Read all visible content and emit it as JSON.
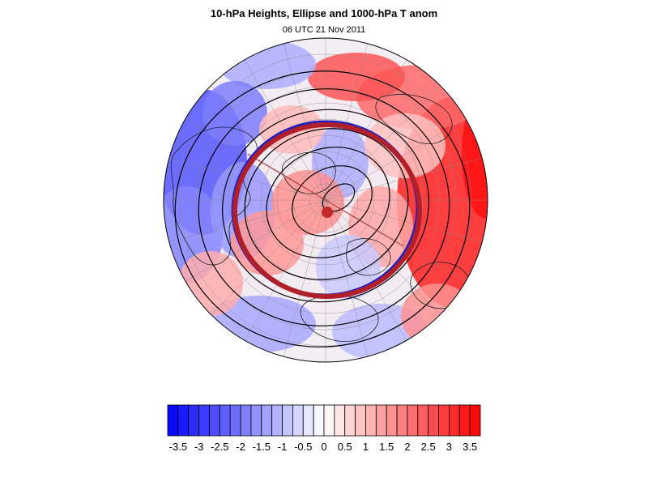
{
  "title": "10-hPa Heights, Ellipse and 1000-hPa T anom",
  "subtitle": "06 UTC 21 Nov 2011",
  "colors": {
    "min": "#0000ff",
    "mid": "#ffffff",
    "max": "#ff0000",
    "ellipse_outer": "#b0202a",
    "ellipse_inner": "#2020c0",
    "center_dot": "#c42828",
    "axis_line": "#b03030"
  },
  "colorbar": {
    "levels": [
      -3.75,
      -3.5,
      -3.25,
      -3,
      -2.75,
      -2.5,
      -2.25,
      -2,
      -1.75,
      -1.5,
      -1.25,
      -1,
      -0.75,
      -0.5,
      -0.25,
      0,
      0.25,
      0.5,
      0.75,
      1,
      1.25,
      1.5,
      1.75,
      2,
      2.25,
      2.5,
      2.75,
      3,
      3.25,
      3.5,
      3.75
    ],
    "tick_labels": [
      "-3.5",
      "-3",
      "-2.5",
      "-2",
      "-1.5",
      "-1",
      "-0.5",
      "0",
      "0.5",
      "1",
      "1.5",
      "2",
      "2.5",
      "3",
      "3.5"
    ],
    "tick_values": [
      -3.5,
      -3,
      -2.5,
      -2,
      -1.5,
      -1,
      -0.5,
      0,
      0.5,
      1,
      1.5,
      2,
      2.5,
      3,
      3.5
    ]
  },
  "map": {
    "projection": "north-polar-stereographic",
    "overlays": [
      "10-hPa height contours",
      "fitted vortex ellipse",
      "1000-hPa temperature anomaly shading"
    ]
  }
}
